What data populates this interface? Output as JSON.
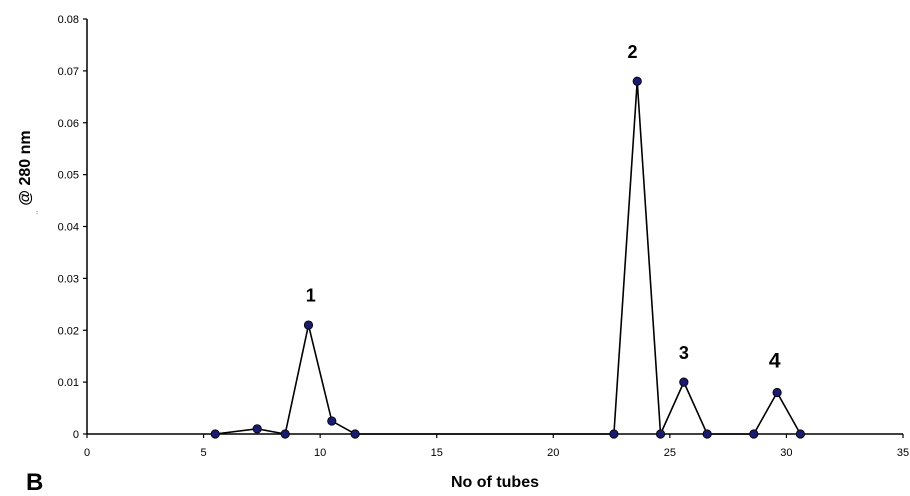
{
  "chart_data": {
    "type": "line",
    "title": "",
    "xlabel": "No of tubes",
    "ylabel": "@ 280 nm",
    "xlim": [
      0,
      35
    ],
    "ylim": [
      0,
      0.08
    ],
    "x_ticks": [
      0,
      5,
      10,
      15,
      20,
      25,
      30,
      35
    ],
    "y_ticks": [
      "0",
      "0.01",
      "0.02",
      "0.03",
      "0.04",
      "0.05",
      "0.06",
      "0.07",
      "0.08"
    ],
    "grid": false,
    "legend": "none",
    "line_color": "#000000",
    "marker_color": "#1a1a6e",
    "series": [
      {
        "x": [
          5.5,
          7.3,
          8.5,
          9.5,
          10.5,
          11.5,
          22.6,
          23.6,
          24.6,
          25.6,
          26.6,
          28.6,
          29.6,
          30.6
        ],
        "y": [
          0,
          0.001,
          0,
          0.021,
          0.0025,
          0,
          0,
          0.068,
          0,
          0.01,
          0,
          0,
          0.008,
          0
        ]
      }
    ],
    "annotations": [
      {
        "text": "1",
        "x": 9.6,
        "y": 0.0255,
        "color": "#000000"
      },
      {
        "text": "2",
        "x": 23.4,
        "y": 0.0725,
        "color": "#f07820"
      },
      {
        "text": "3",
        "x": 25.6,
        "y": 0.0145,
        "color": "#000000"
      },
      {
        "text": "4",
        "x": 29.5,
        "y": 0.0128,
        "color": "#000000"
      }
    ]
  },
  "panel_letter": "B"
}
